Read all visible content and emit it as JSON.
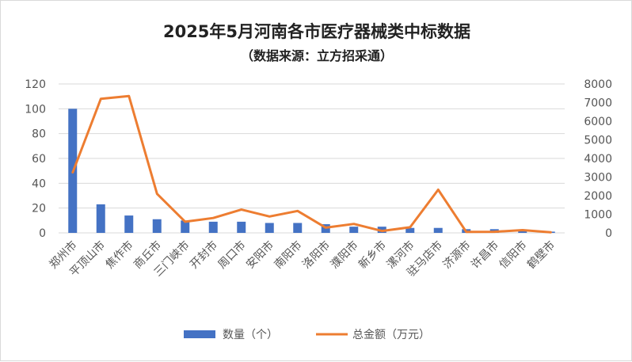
{
  "chart_data": {
    "type": "bar+line",
    "title": "2025年5月河南各市医疗器械类中标数据",
    "subtitle": "（数据来源：立方招采通）",
    "categories": [
      "郑州市",
      "平顶山市",
      "焦作市",
      "商丘市",
      "三门峡市",
      "开封市",
      "周口市",
      "安阳市",
      "南阳市",
      "洛阳市",
      "濮阳市",
      "新乡市",
      "漯河市",
      "驻马店市",
      "济源市",
      "许昌市",
      "信阳市",
      "鹤壁市"
    ],
    "series": [
      {
        "name": "数量（个）",
        "type": "bar",
        "axis": "left",
        "color": "#4472C4",
        "values": [
          100,
          23,
          14,
          11,
          10,
          9,
          9,
          8,
          8,
          7,
          5,
          5,
          4,
          4,
          3,
          3,
          2,
          1
        ]
      },
      {
        "name": "总金额（万元）",
        "type": "line",
        "axis": "right",
        "color": "#ED7D31",
        "values": [
          3250,
          7200,
          7350,
          2100,
          600,
          800,
          1250,
          880,
          1180,
          280,
          480,
          100,
          300,
          2320,
          50,
          60,
          150,
          30
        ]
      }
    ],
    "y_left": {
      "min": 0,
      "max": 120,
      "ticks": [
        "0",
        "20",
        "40",
        "60",
        "80",
        "100",
        "120"
      ]
    },
    "y_right": {
      "min": 0,
      "max": 8000,
      "ticks": [
        "0",
        "1000",
        "2000",
        "3000",
        "4000",
        "5000",
        "6000",
        "7000",
        "8000"
      ]
    },
    "grid": true,
    "legend_position": "bottom"
  }
}
